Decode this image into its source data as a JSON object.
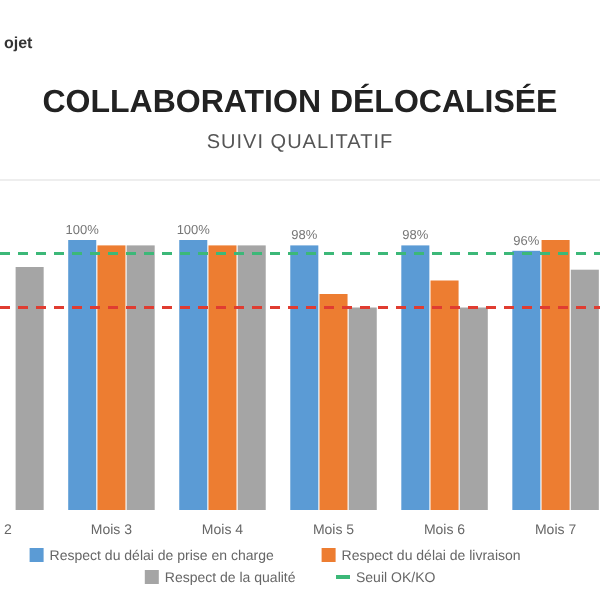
{
  "chart_data": {
    "type": "bar",
    "title": "COLLABORATION DÉLOCALISÉE",
    "subtitle": "SUIVI QUALITATIF",
    "annotations": [
      "ojet"
    ],
    "categories": [
      "2",
      "Mois 3",
      "Mois 4",
      "Mois 5",
      "Mois 6",
      "Mois 7"
    ],
    "series": [
      {
        "name": "Respect du délai de prise en charge",
        "color": "#5b9bd5",
        "values": [
          null,
          100,
          100,
          98,
          98,
          96
        ],
        "value_labels": [
          null,
          "100%",
          "100%",
          "98%",
          "98%",
          "96%"
        ]
      },
      {
        "name": "Respect du délai de livraison",
        "color": "#ed7d31",
        "values": [
          null,
          98,
          98,
          80,
          85,
          100
        ]
      },
      {
        "name": "Respect de la qualité",
        "color": "#a5a5a5",
        "values": [
          90,
          98,
          98,
          75,
          75,
          89
        ]
      }
    ],
    "ref_lines": [
      {
        "axis": "y",
        "value": 95,
        "label": "Seuil OK/KO",
        "color": "#3cb878",
        "line_style": "dashed"
      },
      {
        "axis": "y",
        "value": 75,
        "color": "#e03c31",
        "line_style": "dashed"
      }
    ],
    "legend": "bottom"
  }
}
